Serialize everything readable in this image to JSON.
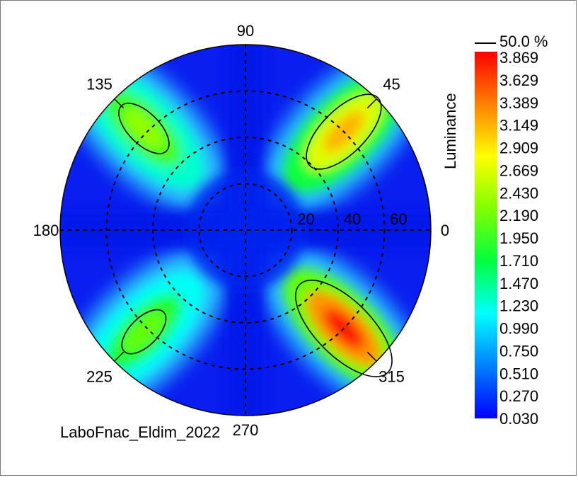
{
  "chart_data": {
    "type": "heatmap",
    "subtype": "polar-conoscopic-map",
    "caption": "LaboFnac_Eldim_2022",
    "radial_rings": [
      20,
      40,
      60
    ],
    "radial_max": 80,
    "azimuth_labels": [
      {
        "angle": 0,
        "text": "0"
      },
      {
        "angle": 45,
        "text": "45"
      },
      {
        "angle": 90,
        "text": "90"
      },
      {
        "angle": 135,
        "text": "135"
      },
      {
        "angle": 180,
        "text": "180"
      },
      {
        "angle": 225,
        "text": "225"
      },
      {
        "angle": 270,
        "text": "270"
      },
      {
        "angle": 315,
        "text": "315"
      }
    ],
    "colorbar": {
      "label": "Luminance",
      "ticks": [
        "3.869",
        "3.629",
        "3.389",
        "3.149",
        "2.909",
        "2.669",
        "2.430",
        "2.190",
        "1.950",
        "1.710",
        "1.470",
        "1.230",
        "0.990",
        "0.750",
        "0.510",
        "0.270",
        "0.030"
      ],
      "min": 0.03,
      "max": 3.869,
      "colors": [
        "#0000ff",
        "#0080ff",
        "#00ffff",
        "#00ff40",
        "#80ff00",
        "#ffff00",
        "#ff8000",
        "#ff0000"
      ]
    },
    "contour": {
      "label": "50.0 %",
      "level": 1.95
    },
    "hotspots": [
      {
        "azimuth": 45,
        "polar": 60,
        "value": 3.1
      },
      {
        "azimuth": 135,
        "polar": 62,
        "value": 2.3
      },
      {
        "azimuth": 225,
        "polar": 62,
        "value": 2.1
      },
      {
        "azimuth": 315,
        "polar": 60,
        "value": 3.8
      }
    ]
  }
}
